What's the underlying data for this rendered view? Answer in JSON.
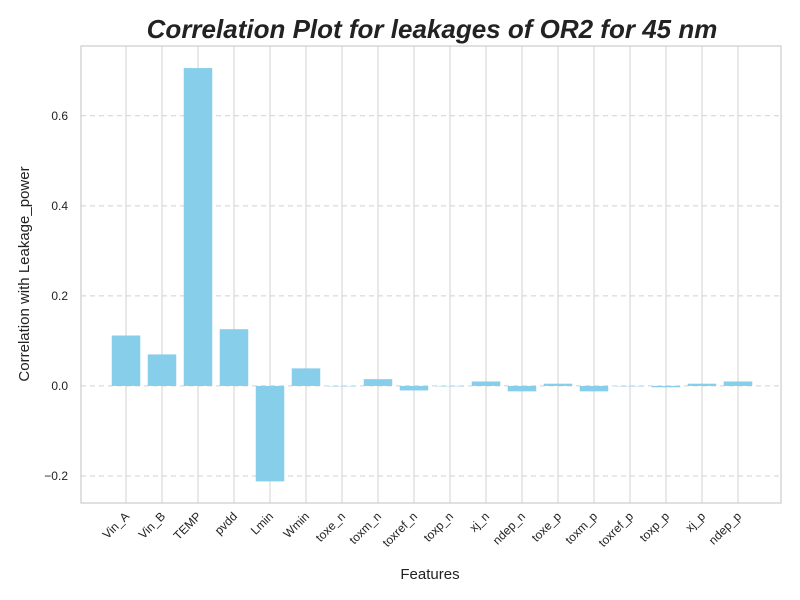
{
  "chart_data": {
    "type": "bar",
    "title": "Correlation Plot for leakages of OR2 for 45 nm",
    "xlabel": "Features",
    "ylabel": "Correlation with Leakage_power",
    "categories": [
      "Vin_A",
      "Vin_B",
      "TEMP",
      "pvdd",
      "Lmin",
      "Wmin",
      "toxe_n",
      "toxm_n",
      "toxref_n",
      "toxp_n",
      "xj_n",
      "ndep_n",
      "toxe_p",
      "toxm_p",
      "toxref_p",
      "toxp_p",
      "xj_p",
      "ndep_p"
    ],
    "values": [
      0.112,
      0.07,
      0.706,
      0.126,
      -0.212,
      0.039,
      0.0,
      0.015,
      -0.01,
      0.0,
      0.01,
      -0.012,
      0.005,
      -0.012,
      0.0,
      -0.003,
      0.005,
      0.01
    ],
    "ylim": [
      -0.26,
      0.755
    ],
    "yticks": [
      -0.2,
      0.0,
      0.2,
      0.4,
      0.6
    ],
    "ytick_labels": [
      "−0.2",
      "0.0",
      "0.2",
      "0.4",
      "0.6"
    ],
    "grid": true,
    "bar_color": "#87ceeb",
    "grid_color": "#d0d0d0",
    "axes_edge_color": "#cccccc"
  }
}
